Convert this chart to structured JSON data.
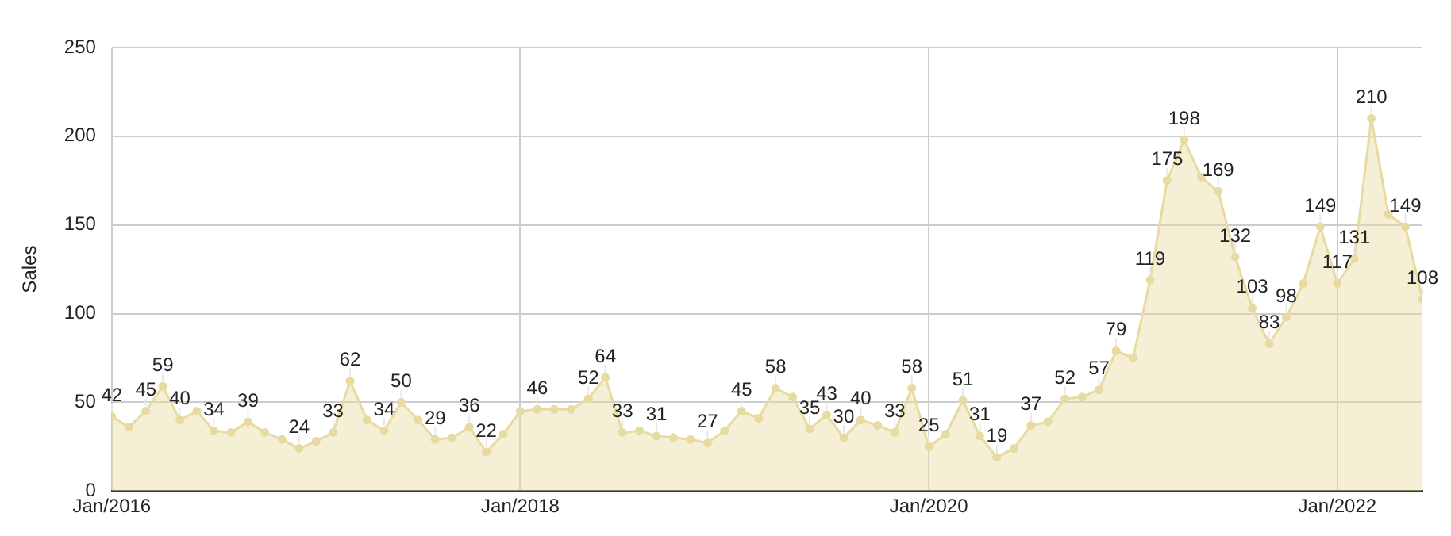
{
  "chart_data": {
    "type": "area",
    "ylabel": "Sales",
    "x": [
      "2016-01",
      "2016-02",
      "2016-03",
      "2016-04",
      "2016-05",
      "2016-06",
      "2016-07",
      "2016-08",
      "2016-09",
      "2016-10",
      "2016-11",
      "2016-12",
      "2017-01",
      "2017-02",
      "2017-03",
      "2017-04",
      "2017-05",
      "2017-06",
      "2017-07",
      "2017-08",
      "2017-09",
      "2017-10",
      "2017-11",
      "2017-12",
      "2018-01",
      "2018-02",
      "2018-03",
      "2018-04",
      "2018-05",
      "2018-06",
      "2018-07",
      "2018-08",
      "2018-09",
      "2018-10",
      "2018-11",
      "2018-12",
      "2019-01",
      "2019-02",
      "2019-03",
      "2019-04",
      "2019-05",
      "2019-06",
      "2019-07",
      "2019-08",
      "2019-09",
      "2019-10",
      "2019-11",
      "2019-12",
      "2020-01",
      "2020-02",
      "2020-03",
      "2020-04",
      "2020-05",
      "2020-06",
      "2020-07",
      "2020-08",
      "2020-09",
      "2020-10",
      "2020-11",
      "2020-12",
      "2021-01",
      "2021-02",
      "2021-03",
      "2021-04",
      "2021-05",
      "2021-06",
      "2021-07",
      "2021-08",
      "2021-09",
      "2021-10",
      "2021-11",
      "2021-12",
      "2022-01",
      "2022-02",
      "2022-03",
      "2022-04",
      "2022-05",
      "2022-06"
    ],
    "series": [
      {
        "color": "#e8dba2",
        "values": [
          42,
          36,
          45,
          59,
          40,
          45,
          34,
          33,
          39,
          33,
          29,
          24,
          28,
          33,
          62,
          40,
          34,
          50,
          40,
          29,
          30,
          36,
          22,
          32,
          45,
          46,
          46,
          46,
          52,
          64,
          33,
          34,
          31,
          30,
          29,
          27,
          34,
          45,
          41,
          58,
          53,
          35,
          43,
          30,
          40,
          37,
          33,
          58,
          25,
          32,
          51,
          31,
          19,
          24,
          37,
          39,
          52,
          53,
          57,
          79,
          75,
          119,
          175,
          198,
          177,
          169,
          132,
          103,
          83,
          98,
          117,
          149,
          117,
          131,
          210,
          156,
          149,
          108
        ],
        "value_labels": [
          "42",
          null,
          "45",
          "59",
          "40",
          null,
          "34",
          null,
          "39",
          null,
          null,
          "24",
          null,
          "33",
          "62",
          null,
          "34",
          "50",
          null,
          "29",
          null,
          "36",
          "22",
          null,
          null,
          "46",
          null,
          null,
          "52",
          "64",
          "33",
          null,
          "31",
          null,
          null,
          "27",
          null,
          "45",
          null,
          "58",
          null,
          "35",
          "43",
          "30",
          "40",
          null,
          "33",
          "58",
          "25",
          null,
          "51",
          "31",
          "19",
          null,
          "37",
          null,
          "52",
          null,
          "57",
          "79",
          null,
          "119",
          "175",
          "198",
          null,
          "169",
          "132",
          "103",
          "83",
          "98",
          null,
          "149",
          "117",
          "131",
          "210",
          null,
          "149",
          "108"
        ]
      }
    ],
    "xlim": [
      "2016-01",
      "2022-06"
    ],
    "xticks": [
      {
        "value": "2016-01",
        "label": "Jan/2016"
      },
      {
        "value": "2018-01",
        "label": "Jan/2018"
      },
      {
        "value": "2020-01",
        "label": "Jan/2020"
      },
      {
        "value": "2022-01",
        "label": "Jan/2022"
      }
    ],
    "ylim": [
      0,
      250
    ],
    "yticks": [
      0,
      50,
      100,
      150,
      200,
      250
    ],
    "grid": true,
    "marker": "circle",
    "legend": false
  }
}
